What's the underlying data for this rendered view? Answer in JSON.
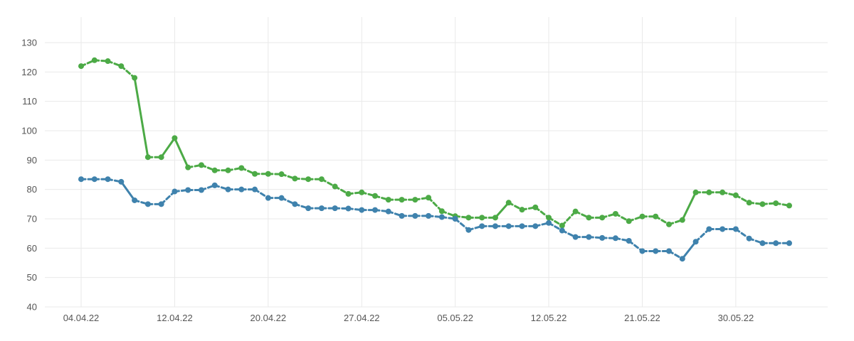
{
  "chart_data": {
    "type": "line",
    "title": "",
    "xlabel": "",
    "ylabel": "",
    "ylim": [
      40,
      130
    ],
    "y_ticks": [
      40,
      50,
      60,
      70,
      80,
      90,
      100,
      110,
      120,
      130
    ],
    "x_ticks": [
      {
        "label": "04.04.22",
        "index": 0
      },
      {
        "label": "12.04.22",
        "index": 7
      },
      {
        "label": "20.04.22",
        "index": 14
      },
      {
        "label": "27.04.22",
        "index": 21
      },
      {
        "label": "05.05.22",
        "index": 28
      },
      {
        "label": "12.05.22",
        "index": 35
      },
      {
        "label": "21.05.22",
        "index": 42
      },
      {
        "label": "30.05.22",
        "index": 49
      }
    ],
    "grid": true,
    "legend": "none",
    "point_count": 54,
    "series": [
      {
        "color": "#4caa46",
        "values": [
          122,
          124,
          123.7,
          122,
          118,
          91,
          91,
          97.5,
          87.5,
          88.3,
          86.5,
          86.5,
          87.3,
          85.3,
          85.3,
          85.2,
          83.7,
          83.5,
          83.5,
          81,
          78.5,
          79,
          77.8,
          76.5,
          76.5,
          76.5,
          77.2,
          72.6,
          70.9,
          70.4,
          70.4,
          70.4,
          75.5,
          73.1,
          73.9,
          70.4,
          67.7,
          72.5,
          70.4,
          70.4,
          71.7,
          69.2,
          70.8,
          70.8,
          68.1,
          69.6,
          79,
          79,
          79,
          78,
          75.5,
          75,
          75.3,
          74.5
        ]
      },
      {
        "color": "#3f82ad",
        "values": [
          83.5,
          83.5,
          83.5,
          82.6,
          76.3,
          75,
          75,
          79.3,
          79.8,
          79.8,
          81.4,
          80,
          80,
          80,
          77.1,
          77.1,
          75,
          73.6,
          73.6,
          73.6,
          73.5,
          73,
          73,
          72.5,
          71,
          71,
          71,
          70.6,
          70,
          66.2,
          67.5,
          67.5,
          67.5,
          67.5,
          67.5,
          68.6,
          66,
          63.8,
          63.8,
          63.5,
          63.4,
          62.5,
          59,
          59,
          59,
          56.4,
          62.2,
          66.5,
          66.5,
          66.5,
          63.3,
          61.7,
          61.7,
          61.7
        ]
      }
    ]
  }
}
